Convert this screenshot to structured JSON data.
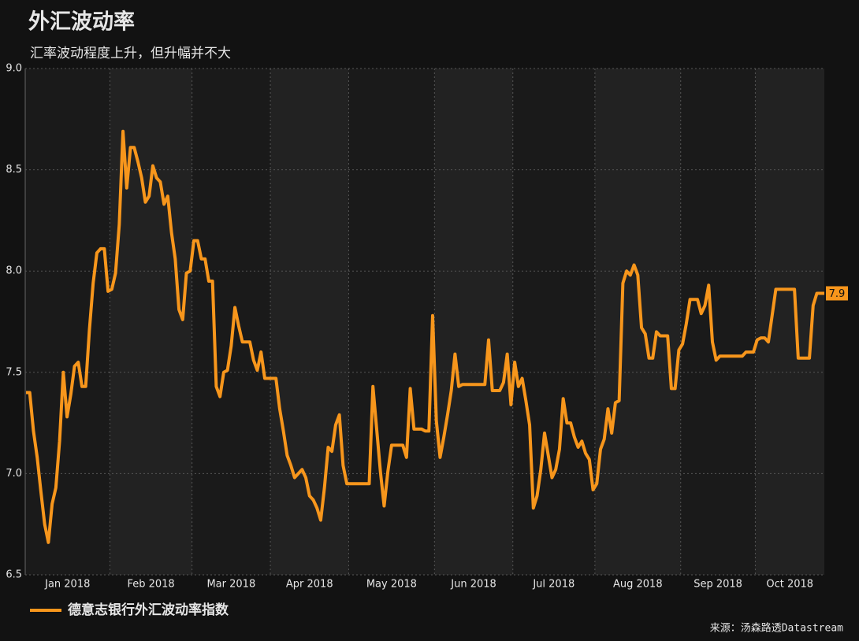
{
  "chart_data": {
    "type": "line",
    "title": "外汇波动率",
    "subtitle": "汇率波动程度上升，但升幅并不大",
    "source": "来源：汤森路透Datastream",
    "categories": [
      "Jan 2018",
      null,
      null,
      null,
      null,
      null,
      null,
      null,
      null,
      null,
      null,
      null,
      null,
      null,
      null,
      null,
      null,
      null,
      null,
      null,
      null,
      null,
      null,
      "Feb 2018",
      null,
      null,
      null,
      null,
      null,
      null,
      null,
      null,
      null,
      null,
      null,
      null,
      null,
      null,
      null,
      null,
      null,
      null,
      null,
      null,
      null,
      "Mar 2018",
      null,
      null,
      null,
      null,
      null,
      null,
      null,
      null,
      null,
      null,
      null,
      null,
      null,
      null,
      null,
      null,
      null,
      null,
      null,
      null,
      "Apr 2018",
      null,
      null,
      null,
      null,
      null,
      null,
      null,
      null,
      null,
      null,
      null,
      null,
      null,
      null,
      null,
      null,
      null,
      null,
      null,
      null,
      "May 2018",
      null,
      null,
      null,
      null,
      null,
      null,
      null,
      null,
      null,
      null,
      null,
      null,
      null,
      null,
      null,
      null,
      null,
      null,
      null,
      null,
      null,
      null,
      "Jun 2018",
      null,
      null,
      null,
      null,
      null,
      null,
      null,
      null,
      null,
      null,
      null,
      null,
      null,
      null,
      null,
      null,
      null,
      null,
      null,
      null,
      "Jul 2018",
      null,
      null,
      null,
      null,
      null,
      null,
      null,
      null,
      null,
      null,
      null,
      null,
      null,
      null,
      null,
      null,
      null,
      null,
      null,
      null,
      null,
      "Aug 2018",
      null,
      null,
      null,
      null,
      null,
      null,
      null,
      null,
      null,
      null,
      null,
      null,
      null,
      null,
      null,
      null,
      null,
      null,
      null,
      null,
      null,
      null,
      "Sep 2018",
      null,
      null,
      null,
      null,
      null,
      null,
      null,
      null,
      null,
      null,
      null,
      null,
      null,
      null,
      null,
      null,
      null,
      null,
      null,
      "Oct 2018",
      null,
      null,
      null,
      null,
      null,
      null,
      null,
      null,
      null,
      null,
      null,
      null,
      null,
      null,
      null,
      null,
      null,
      null
    ],
    "series": [
      {
        "name": "德意志银行外汇波动率指数",
        "color": "#f7961c",
        "values": [
          7.4,
          7.4,
          7.21,
          7.08,
          6.91,
          6.75,
          6.66,
          6.85,
          6.93,
          7.16,
          7.5,
          7.28,
          7.39,
          7.53,
          7.55,
          7.43,
          7.43,
          7.71,
          7.94,
          8.09,
          8.11,
          8.11,
          7.9,
          7.91,
          7.99,
          8.23,
          8.69,
          8.41,
          8.61,
          8.61,
          8.54,
          8.46,
          8.34,
          8.37,
          8.52,
          8.46,
          8.44,
          8.33,
          8.37,
          8.19,
          8.06,
          7.81,
          7.76,
          7.99,
          8.0,
          8.15,
          8.15,
          8.06,
          8.06,
          7.95,
          7.95,
          7.43,
          7.38,
          7.5,
          7.51,
          7.63,
          7.82,
          7.73,
          7.65,
          7.65,
          7.65,
          7.56,
          7.51,
          7.6,
          7.47,
          7.47,
          7.47,
          7.47,
          7.32,
          7.21,
          7.09,
          7.04,
          6.98,
          7.0,
          7.02,
          6.98,
          6.89,
          6.87,
          6.83,
          6.77,
          6.93,
          7.13,
          7.11,
          7.24,
          7.29,
          7.04,
          6.95,
          6.95,
          6.95,
          6.95,
          6.95,
          6.95,
          6.95,
          7.43,
          7.22,
          7.01,
          6.84,
          7.01,
          7.14,
          7.14,
          7.14,
          7.14,
          7.08,
          7.42,
          7.22,
          7.22,
          7.22,
          7.21,
          7.21,
          7.78,
          7.26,
          7.08,
          7.18,
          7.29,
          7.41,
          7.59,
          7.43,
          7.44,
          7.44,
          7.44,
          7.44,
          7.44,
          7.44,
          7.44,
          7.66,
          7.41,
          7.41,
          7.41,
          7.45,
          7.59,
          7.34,
          7.55,
          7.43,
          7.47,
          7.36,
          7.24,
          6.83,
          6.89,
          7.02,
          7.2,
          7.09,
          6.98,
          7.02,
          7.12,
          7.37,
          7.25,
          7.25,
          7.18,
          7.13,
          7.16,
          7.1,
          7.07,
          6.92,
          6.95,
          7.12,
          7.17,
          7.32,
          7.2,
          7.35,
          7.36,
          7.94,
          8.0,
          7.98,
          8.03,
          7.98,
          7.72,
          7.69,
          7.57,
          7.57,
          7.7,
          7.68,
          7.68,
          7.68,
          7.42,
          7.42,
          7.61,
          7.64,
          7.74,
          7.86,
          7.86,
          7.86,
          7.79,
          7.83,
          7.93,
          7.65,
          7.56,
          7.58,
          7.58,
          7.58,
          7.58,
          7.58,
          7.58,
          7.58,
          7.6,
          7.6,
          7.6,
          7.66,
          7.67,
          7.67,
          7.65,
          7.78,
          7.91,
          7.91,
          7.91,
          7.91,
          7.91,
          7.91,
          7.57,
          7.57,
          7.57,
          7.57,
          7.83,
          7.89,
          7.89,
          7.89
        ],
        "value_labels": [
          null,
          null,
          null,
          null,
          null,
          null,
          null,
          null,
          null,
          null,
          null,
          null,
          null,
          null,
          null,
          null,
          null,
          null,
          null,
          null,
          null,
          null,
          null,
          null,
          null,
          null,
          null,
          null,
          null,
          null,
          null,
          null,
          null,
          null,
          null,
          null,
          null,
          null,
          null,
          null,
          null,
          null,
          null,
          null,
          null,
          null,
          null,
          null,
          null,
          null,
          null,
          null,
          null,
          null,
          null,
          null,
          null,
          null,
          null,
          null,
          null,
          null,
          null,
          null,
          null,
          null,
          null,
          null,
          null,
          null,
          null,
          null,
          null,
          null,
          null,
          null,
          null,
          null,
          null,
          null,
          null,
          null,
          null,
          null,
          null,
          null,
          null,
          null,
          null,
          null,
          null,
          null,
          null,
          null,
          null,
          null,
          null,
          null,
          null,
          null,
          null,
          null,
          null,
          null,
          null,
          null,
          null,
          null,
          null,
          null,
          null,
          null,
          null,
          null,
          null,
          null,
          null,
          null,
          null,
          null,
          null,
          null,
          null,
          null,
          null,
          null,
          null,
          null,
          null,
          null,
          null,
          null,
          null,
          null,
          null,
          null,
          null,
          null,
          null,
          null,
          null,
          null,
          null,
          null,
          null,
          null,
          null,
          null,
          null,
          null,
          null,
          null,
          null,
          null,
          null,
          null,
          null,
          null,
          null,
          null,
          null,
          null,
          null,
          null,
          null,
          null,
          null,
          null,
          null,
          null,
          null,
          null,
          null,
          null,
          null,
          null,
          null,
          null,
          null,
          null,
          null,
          null,
          null,
          null,
          null,
          null,
          null,
          null,
          null,
          null,
          null,
          null,
          null,
          null,
          null,
          null,
          null,
          null,
          null,
          null,
          null,
          null,
          null,
          null,
          null,
          null,
          null,
          null,
          null,
          null,
          null,
          null,
          null,
          null,
          "7.9"
        ]
      }
    ],
    "ylim": [
      6.5,
      9.0
    ],
    "yticks": [
      {
        "value": 6.5,
        "label": "6.5"
      },
      {
        "value": 7,
        "label": "7.0"
      },
      7.5,
      {
        "value": 8,
        "label": "8.0"
      },
      8.5,
      {
        "value": 9,
        "label": "9.0"
      }
    ],
    "grid": true
  }
}
